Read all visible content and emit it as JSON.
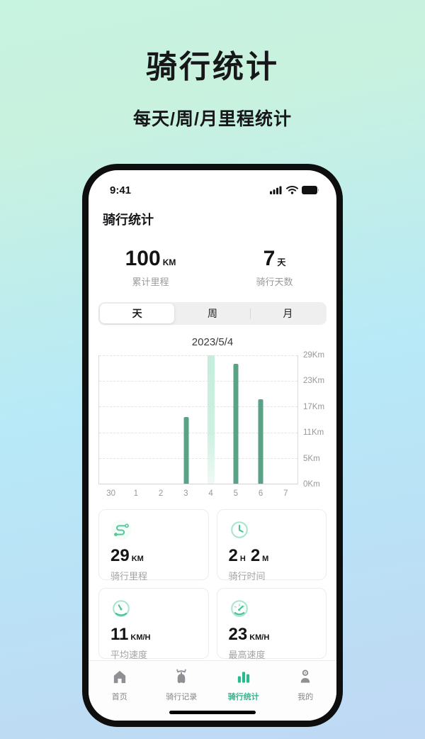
{
  "hero": {
    "title": "骑行统计",
    "subtitle": "每天/周/月里程统计"
  },
  "status_bar": {
    "time": "9:41",
    "icons": [
      "signal-icon",
      "wifi-icon",
      "battery-icon"
    ]
  },
  "app": {
    "header_title": "骑行统计",
    "summary": [
      {
        "value": "100",
        "unit": "KM",
        "label": "累计里程"
      },
      {
        "value": "7",
        "unit": "天",
        "label": "骑行天数"
      }
    ],
    "tabs": [
      {
        "label": "天",
        "active": true
      },
      {
        "label": "周",
        "active": false
      },
      {
        "label": "月",
        "active": false
      }
    ],
    "cards": [
      {
        "icon": "route-icon",
        "value": "29",
        "unit": "KM",
        "label": "骑行里程"
      },
      {
        "icon": "clock-icon",
        "value": "2",
        "unit": "H",
        "value2": "2",
        "unit2": "M",
        "label": "骑行时间"
      },
      {
        "icon": "speedometer-icon",
        "value": "11",
        "unit": "KM/H",
        "label": "平均速度"
      },
      {
        "icon": "gauge-max-icon",
        "value": "23",
        "unit": "KM/H",
        "label": "最高速度"
      }
    ],
    "nav": [
      {
        "icon": "home-icon",
        "label": "首页",
        "active": false
      },
      {
        "icon": "scooter-icon",
        "label": "骑行记录",
        "active": false
      },
      {
        "icon": "bar-chart-icon",
        "label": "骑行统计",
        "active": true
      },
      {
        "icon": "user-icon",
        "label": "我的",
        "active": false
      }
    ]
  },
  "chart_data": {
    "type": "bar",
    "title": "2023/5/4",
    "categories": [
      "30",
      "1",
      "2",
      "3",
      "4",
      "5",
      "6",
      "7"
    ],
    "values": [
      0,
      0,
      0,
      15,
      29,
      27,
      19,
      0
    ],
    "highlight_index": 4,
    "ylim": [
      0,
      29
    ],
    "y_ticks": [
      "0Km",
      "5Km",
      "11Km",
      "17Km",
      "23Km",
      "29Km"
    ],
    "xlabel": "",
    "ylabel": "",
    "grid": "horizontal-dashed",
    "y_axis_side": "right",
    "legend_position": "none"
  },
  "colors": {
    "accent": "#2ab88d",
    "bar": "#59a285",
    "bar_highlight": "#c8eedd",
    "nav_inactive": "#8f8f94"
  }
}
